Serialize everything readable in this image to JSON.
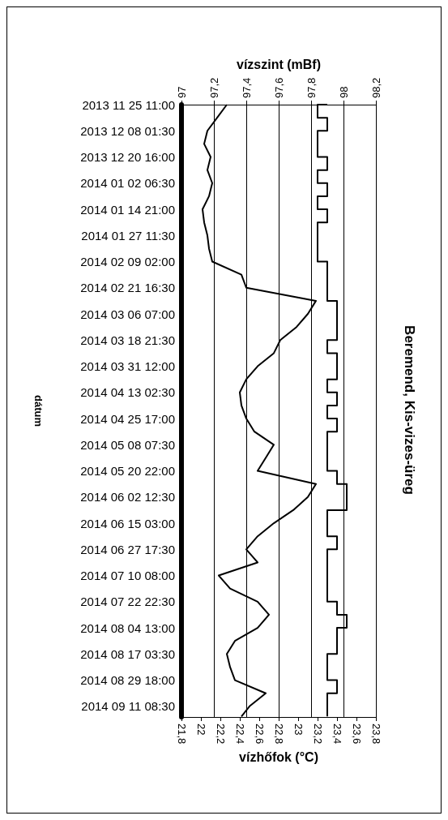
{
  "chart_data": {
    "type": "line",
    "orientation": "horizontal",
    "title": "Beremend, Kis-vizes-üreg",
    "xlabel": "vízhőfok (°C)",
    "x2label": "vízszint (mBf)",
    "ylabel": "dátum",
    "x": [
      "2013-11-25T11:00",
      "2013-12-01T18:15",
      "2013-12-08T01:30",
      "2013-12-14T08:45",
      "2013-12-20T16:00",
      "2013-12-26T23:15",
      "2014-01-02T06:30",
      "2014-01-08T13:45",
      "2014-01-14T21:00",
      "2014-01-21T04:15",
      "2014-01-27T11:30",
      "2014-02-02T18:45",
      "2014-02-09T02:00",
      "2014-02-15T09:15",
      "2014-02-21T16:30",
      "2014-02-27T23:45",
      "2014-03-06T07:00",
      "2014-03-12T14:15",
      "2014-03-18T21:30",
      "2014-03-25T04:45",
      "2014-03-31T12:00",
      "2014-04-06T19:15",
      "2014-04-13T02:30",
      "2014-04-19T09:45",
      "2014-04-25T17:00",
      "2014-05-02T00:15",
      "2014-05-08T07:30",
      "2014-05-14T14:45",
      "2014-05-20T22:00",
      "2014-05-27T05:15",
      "2014-06-02T12:30",
      "2014-06-08T19:45",
      "2014-06-15T03:00",
      "2014-06-21T10:15",
      "2014-06-27T17:30",
      "2014-07-04T00:45",
      "2014-07-10T08:00",
      "2014-07-16T15:15",
      "2014-07-22T22:30",
      "2014-07-29T05:45",
      "2014-08-04T13:00",
      "2014-08-10T20:15",
      "2014-08-17T03:30",
      "2014-08-23T10:45",
      "2014-08-29T18:00",
      "2014-09-05T01:15",
      "2014-09-11T08:30",
      "2014-09-16T06:00"
    ],
    "xlim": [
      21.8,
      23.8
    ],
    "xticks": [
      {
        "value": 21.8,
        "label": "21,8"
      },
      22,
      {
        "value": 22.2,
        "label": "22,2"
      },
      {
        "value": 22.4,
        "label": "22,4"
      },
      {
        "value": 22.6,
        "label": "22,6"
      },
      {
        "value": 22.8,
        "label": "22,8"
      },
      23,
      {
        "value": 23.2,
        "label": "23,2"
      },
      {
        "value": 23.4,
        "label": "23,4"
      },
      {
        "value": 23.6,
        "label": "23,6"
      },
      {
        "value": 23.8,
        "label": "23,8"
      }
    ],
    "x2lim": [
      97,
      98.2
    ],
    "x2ticks": [
      97,
      {
        "value": 97.2,
        "label": "97,2"
      },
      {
        "value": 97.4,
        "label": "97,4"
      },
      {
        "value": 97.6,
        "label": "97,6"
      },
      {
        "value": 97.8,
        "label": "97,8"
      },
      98,
      {
        "value": 98.2,
        "label": "98,2"
      }
    ],
    "ylim": [
      "2014-09-16T12:00",
      "2013-11-25T11:00"
    ],
    "yticks": [
      {
        "value": "2013-11-25T11:00",
        "label": "2013 11 25 11:00"
      },
      {
        "value": "2013-12-08T01:30",
        "label": "2013 12 08 01:30"
      },
      {
        "value": "2013-12-20T16:00",
        "label": "2013 12 20 16:00"
      },
      {
        "value": "2014-01-02T06:30",
        "label": "2014 01 02 06:30"
      },
      {
        "value": "2014-01-14T21:00",
        "label": "2014 01 14 21:00"
      },
      {
        "value": "2014-01-27T11:30",
        "label": "2014 01 27 11:30"
      },
      {
        "value": "2014-02-09T02:00",
        "label": "2014 02 09 02:00"
      },
      {
        "value": "2014-02-21T16:30",
        "label": "2014 02 21 16:30"
      },
      {
        "value": "2014-03-06T07:00",
        "label": "2014 03 06 07:00"
      },
      {
        "value": "2014-03-18T21:30",
        "label": "2014 03 18 21:30"
      },
      {
        "value": "2014-03-31T12:00",
        "label": "2014 03 31 12:00"
      },
      {
        "value": "2014-04-13T02:30",
        "label": "2014 04 13 02:30"
      },
      {
        "value": "2014-04-25T17:00",
        "label": "2014 04 25 17:00"
      },
      {
        "value": "2014-05-08T07:30",
        "label": "2014 05 08 07:30"
      },
      {
        "value": "2014-05-20T22:00",
        "label": "2014 05 20 22:00"
      },
      {
        "value": "2014-06-02T12:30",
        "label": "2014 06 02 12:30"
      },
      {
        "value": "2014-06-15T03:00",
        "label": "2014 06 15 03:00"
      },
      {
        "value": "2014-06-27T17:30",
        "label": "2014 06 27 17:30"
      },
      {
        "value": "2014-07-10T08:00",
        "label": "2014 07 10 08:00"
      },
      {
        "value": "2014-07-22T22:30",
        "label": "2014 07 22 22:30"
      },
      {
        "value": "2014-08-04T13:00",
        "label": "2014 08 04 13:00"
      },
      {
        "value": "2014-08-17T03:30",
        "label": "2014 08 17 03:30"
      },
      {
        "value": "2014-08-29T18:00",
        "label": "2014 08 29 18:00"
      },
      {
        "value": "2014-09-11T08:30",
        "label": "2014 09 11 08:30"
      }
    ],
    "grid": "x",
    "marker": "none",
    "series": [
      {
        "color": "#000000",
        "axis": "x2",
        "values": [
          97.28,
          97.22,
          97.16,
          97.14,
          97.18,
          97.16,
          97.19,
          97.17,
          97.13,
          97.14,
          97.16,
          97.17,
          97.19,
          97.37,
          97.4,
          97.83,
          97.78,
          97.71,
          97.61,
          97.57,
          97.47,
          97.4,
          97.36,
          97.37,
          97.4,
          97.45,
          97.57,
          97.52,
          97.47,
          97.83,
          97.78,
          97.69,
          97.57,
          97.47,
          97.4,
          97.47,
          97.23,
          97.3,
          97.47,
          97.54,
          97.47,
          97.33,
          97.28,
          97.3,
          97.33,
          97.52,
          97.42,
          97.37
        ]
      },
      {
        "type": "step",
        "color": "#000000",
        "values": [
          23.3,
          23.2,
          23.3,
          23.2,
          23.2,
          23.3,
          23.2,
          23.3,
          23.2,
          23.3,
          23.2,
          23.2,
          23.2,
          23.3,
          23.3,
          23.3,
          23.4,
          23.4,
          23.4,
          23.3,
          23.4,
          23.4,
          23.3,
          23.4,
          23.3,
          23.4,
          23.3,
          23.3,
          23.3,
          23.4,
          23.5,
          23.5,
          23.3,
          23.3,
          23.4,
          23.3,
          23.3,
          23.3,
          23.3,
          23.4,
          23.5,
          23.4,
          23.4,
          23.3,
          23.3,
          23.4,
          23.3,
          23.3
        ]
      }
    ]
  }
}
